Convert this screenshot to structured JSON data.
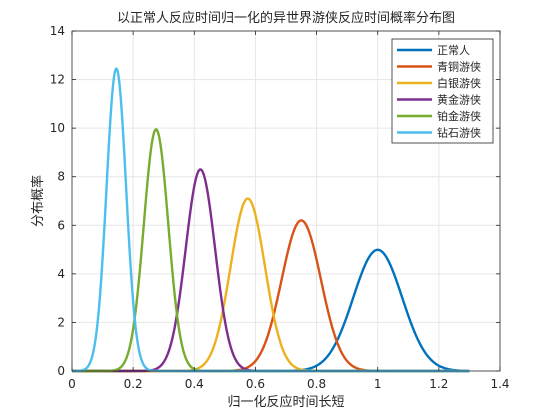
{
  "chart_data": {
    "type": "line",
    "title": "以正常人反应时间归一化的异世界游侠反应时间概率分布图",
    "xlabel": "归一化反应时间长短",
    "ylabel": "分布概率",
    "xlim": [
      0,
      1.4
    ],
    "ylim": [
      0,
      14
    ],
    "xticks": [
      "0",
      "0.2",
      "0.4",
      "0.6",
      "0.8",
      "1",
      "1.2",
      "1.4"
    ],
    "yticks": [
      "0",
      "2",
      "4",
      "6",
      "8",
      "10",
      "12",
      "14"
    ],
    "grid": true,
    "legend_position": "top-right",
    "series": [
      {
        "name": "正常人",
        "color": "#0072BD",
        "mean": 1.0,
        "peak": 4.99
      },
      {
        "name": "青铜游侠",
        "color": "#D95319",
        "mean": 0.75,
        "peak": 6.2
      },
      {
        "name": "白银游侠",
        "color": "#EDB120",
        "mean": 0.575,
        "peak": 7.1
      },
      {
        "name": "黄金游侠",
        "color": "#7E2F8E",
        "mean": 0.42,
        "peak": 8.3
      },
      {
        "name": "铂金游侠",
        "color": "#77AC30",
        "mean": 0.275,
        "peak": 9.95
      },
      {
        "name": "钻石游侠",
        "color": "#4DBEEE",
        "mean": 0.145,
        "peak": 12.45
      }
    ]
  }
}
